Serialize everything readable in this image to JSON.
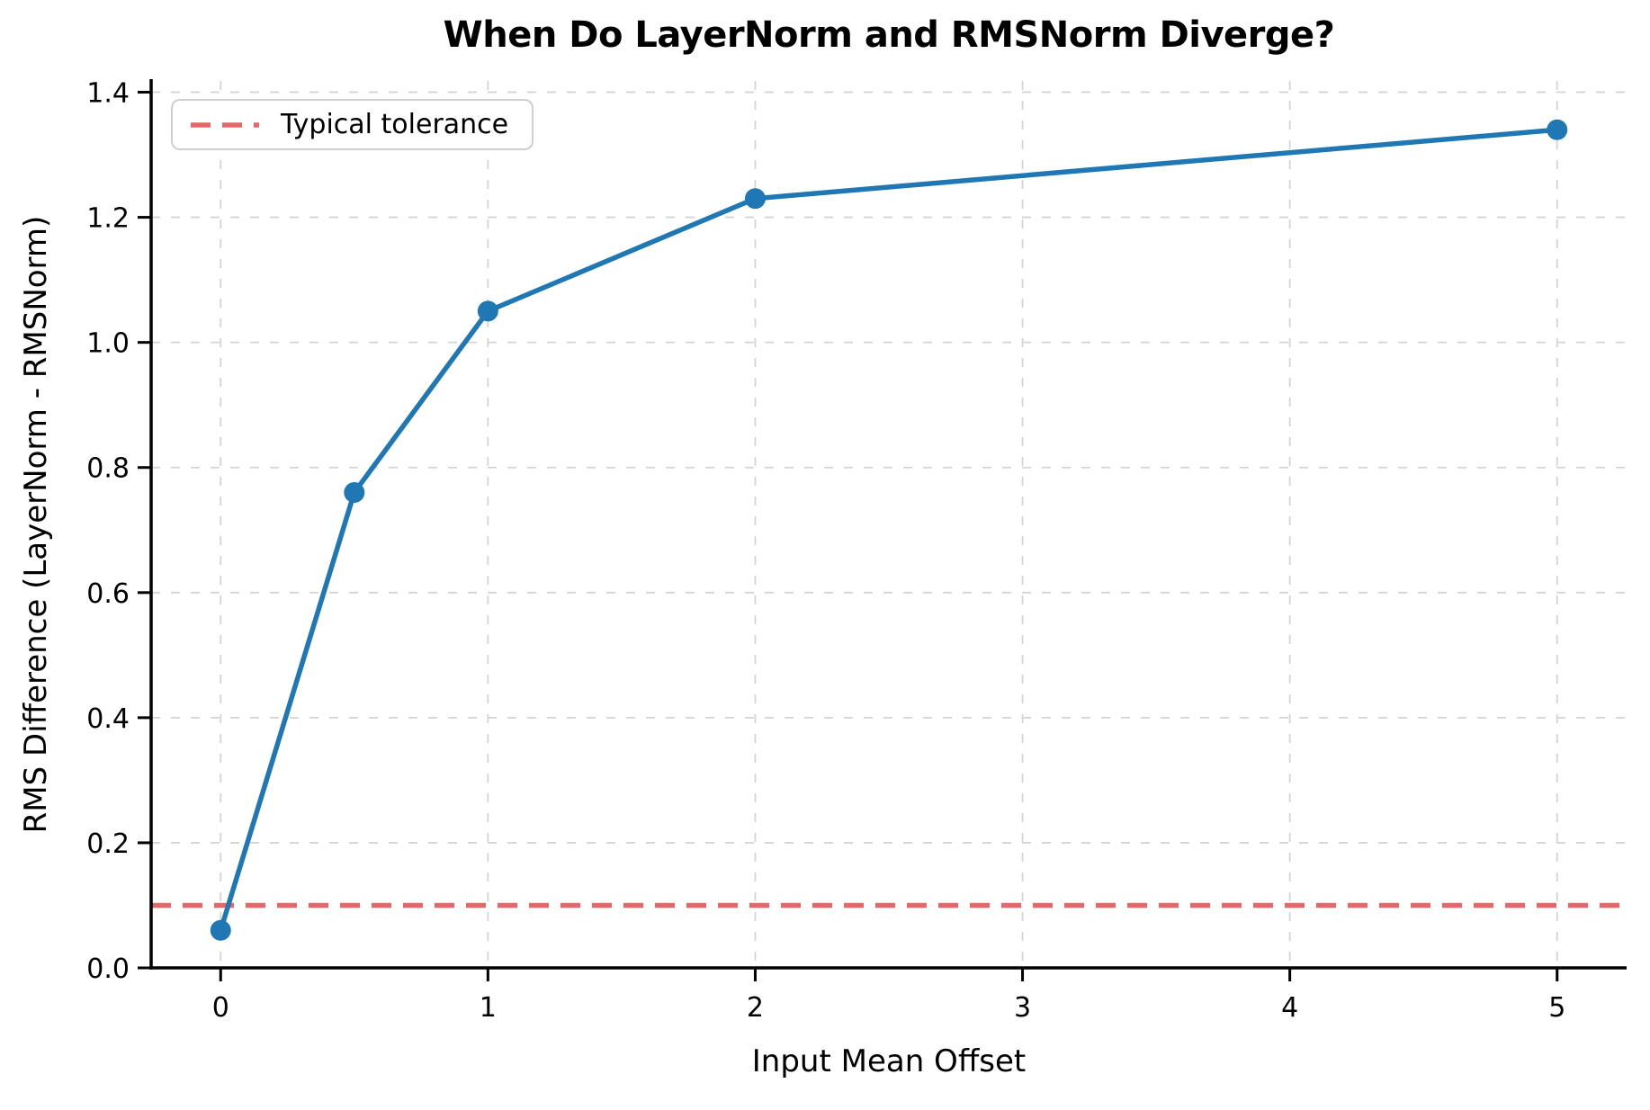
{
  "title": "When Do LayerNorm and RMSNorm Diverge?",
  "legend": {
    "label": "Typical tolerance"
  },
  "colors": {
    "series": "#1f77b4",
    "tolerance": "#e26869",
    "grid": "#d4d4d4",
    "spine": "#000000",
    "text": "#000000"
  },
  "chart_data": {
    "type": "line",
    "title": "When Do LayerNorm and RMSNorm Diverge?",
    "xlabel": "Input Mean Offset",
    "ylabel": "RMS Difference (LayerNorm - RMSNorm)",
    "x": [
      0,
      0.5,
      1,
      2,
      5
    ],
    "y": [
      0.06,
      0.76,
      1.05,
      1.23,
      1.34
    ],
    "series_name": "RMS difference",
    "tolerance_line": {
      "y": 0.1,
      "label": "Typical tolerance",
      "style": "dashed"
    },
    "x_ticks": [
      0,
      1,
      2,
      3,
      4,
      5
    ],
    "x_tick_labels": [
      "0",
      "1",
      "2",
      "3",
      "4",
      "5"
    ],
    "y_ticks": [
      0.0,
      0.2,
      0.4,
      0.6,
      0.8,
      1.0,
      1.2,
      1.4
    ],
    "y_tick_labels": [
      "0.0",
      "0.2",
      "0.4",
      "0.6",
      "0.8",
      "1.0",
      "1.2",
      "1.4"
    ],
    "xlim": [
      -0.26,
      5.26
    ],
    "ylim": [
      0,
      1.418
    ],
    "grid": true,
    "grid_style": "dashed",
    "legend_position": "upper left",
    "marker": "circle"
  }
}
